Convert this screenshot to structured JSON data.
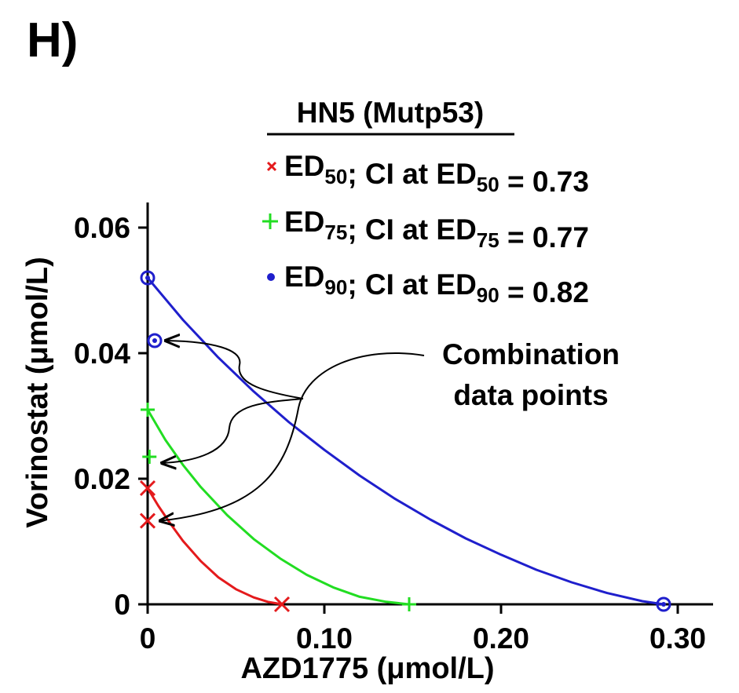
{
  "panel_label": "H)",
  "chart_data": {
    "type": "line",
    "title": "HN5 (Mutp53)",
    "xlabel": "AZD1775 (μmol/L)",
    "ylabel": "Vorinostat (μmol/L)",
    "xlim": [
      0,
      0.32
    ],
    "ylim": [
      0,
      0.064
    ],
    "x_ticks": [
      0,
      0.1,
      0.2,
      0.3
    ],
    "x_tick_labels": [
      "0",
      "0.10",
      "0.20",
      "0.30"
    ],
    "y_ticks": [
      0,
      0.02,
      0.04,
      0.06
    ],
    "y_tick_labels": [
      "0",
      "0.02",
      "0.04",
      "0.06"
    ],
    "grid": false,
    "legend_position": "top-right",
    "series": [
      {
        "key": "ed50",
        "color": "#e41a1c",
        "marker": "x",
        "legend_main": "ED",
        "legend_sub": "50",
        "legend_mid": "; CI at ED",
        "legend_sub2": "50",
        "legend_tail": " = 0.73",
        "endpoints": [
          [
            0,
            0.0185
          ],
          [
            0.076,
            0
          ]
        ],
        "combination_point": [
          0,
          0.0133
        ],
        "curve": [
          [
            0,
            0.0185
          ],
          [
            0.006,
            0.0157
          ],
          [
            0.013,
            0.0128
          ],
          [
            0.02,
            0.0101
          ],
          [
            0.03,
            0.0069
          ],
          [
            0.04,
            0.0043
          ],
          [
            0.05,
            0.0024
          ],
          [
            0.06,
            0.0011
          ],
          [
            0.068,
            0.0004
          ],
          [
            0.076,
            0
          ]
        ]
      },
      {
        "key": "ed75",
        "color": "#22dd22",
        "marker": "+",
        "legend_main": "ED",
        "legend_sub": "75",
        "legend_mid": "; CI at ED",
        "legend_sub2": "75",
        "legend_tail": " = 0.77",
        "endpoints": [
          [
            0,
            0.031
          ],
          [
            0.148,
            0
          ]
        ],
        "combination_point": [
          0.001,
          0.0235
        ],
        "curve": [
          [
            0,
            0.031
          ],
          [
            0.01,
            0.0262
          ],
          [
            0.02,
            0.0222
          ],
          [
            0.03,
            0.0187
          ],
          [
            0.045,
            0.0142
          ],
          [
            0.06,
            0.0104
          ],
          [
            0.075,
            0.0073
          ],
          [
            0.09,
            0.0047
          ],
          [
            0.105,
            0.0027
          ],
          [
            0.12,
            0.0012
          ],
          [
            0.135,
            0.0004
          ],
          [
            0.148,
            0
          ]
        ]
      },
      {
        "key": "ed90",
        "color": "#1f1fcc",
        "marker": "o",
        "legend_main": "ED",
        "legend_sub": "90",
        "legend_mid": "; CI at ED",
        "legend_sub2": "90",
        "legend_tail": " = 0.82",
        "endpoints": [
          [
            0,
            0.052
          ],
          [
            0.292,
            0
          ]
        ],
        "combination_point": [
          0.004,
          0.042
        ],
        "curve": [
          [
            0,
            0.052
          ],
          [
            0.02,
            0.0453
          ],
          [
            0.04,
            0.0393
          ],
          [
            0.06,
            0.0339
          ],
          [
            0.08,
            0.029
          ],
          [
            0.1,
            0.0246
          ],
          [
            0.12,
            0.0205
          ],
          [
            0.14,
            0.0168
          ],
          [
            0.16,
            0.0135
          ],
          [
            0.18,
            0.0105
          ],
          [
            0.2,
            0.0079
          ],
          [
            0.22,
            0.0055
          ],
          [
            0.24,
            0.0035
          ],
          [
            0.26,
            0.0018
          ],
          [
            0.28,
            0.0005
          ],
          [
            0.292,
            0
          ]
        ]
      }
    ],
    "annotation": {
      "lines": [
        "Combination",
        "data points"
      ]
    }
  }
}
